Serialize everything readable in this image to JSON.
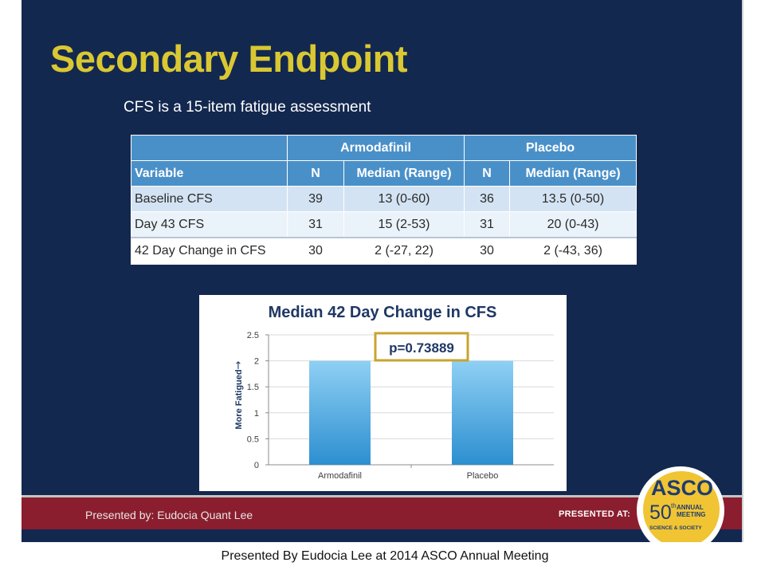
{
  "slide": {
    "title": "Secondary Endpoint",
    "subtitle": "CFS is a 15-item fatigue assessment"
  },
  "table": {
    "groups": [
      "Armodafinil",
      "Placebo"
    ],
    "headers": [
      "Variable",
      "N",
      "Median (Range)",
      "N",
      "Median (Range)"
    ],
    "rows": [
      [
        "Baseline CFS",
        "39",
        "13 (0-60)",
        "36",
        "13.5 (0-50)"
      ],
      [
        "Day 43 CFS",
        "31",
        "15 (2-53)",
        "31",
        "20 (0-43)"
      ],
      [
        "42 Day Change in CFS",
        "30",
        "2 (-27, 22)",
        "30",
        "2 (-43, 36)"
      ]
    ]
  },
  "chart_data": {
    "type": "bar",
    "title": "Median 42 Day Change in CFS",
    "ylabel": "More Fatigued",
    "ylabel_arrow": "→",
    "xlabel": "",
    "categories": [
      "Armodafinil",
      "Placebo"
    ],
    "values": [
      2,
      2
    ],
    "ylim": [
      0,
      2.5
    ],
    "yticks": [
      "0",
      "0.5",
      "1",
      "1.5",
      "2",
      "2.5"
    ],
    "grid": true,
    "annotation": "p=0.73889",
    "colors": {
      "bar_top": "#8fd0f4",
      "bar_bottom": "#2c8fd0",
      "annotation_border": "#c8a431"
    }
  },
  "footer": {
    "presenter": "Presented by: Eudocia Quant Lee",
    "presented_at": "PRESENTED AT:",
    "logo": {
      "name": "ASCO",
      "number": "50",
      "th": "th",
      "line1": "ANNUAL",
      "line2": "MEETING",
      "tagline": "SCIENCE & SOCIETY"
    }
  },
  "caption": "Presented By Eudocia Lee at 2014 ASCO Annual Meeting",
  "colors": {
    "background": "#13284f",
    "title": "#d9c832",
    "footer_band": "#8a1e2e",
    "table_header": "#4a90c8"
  }
}
